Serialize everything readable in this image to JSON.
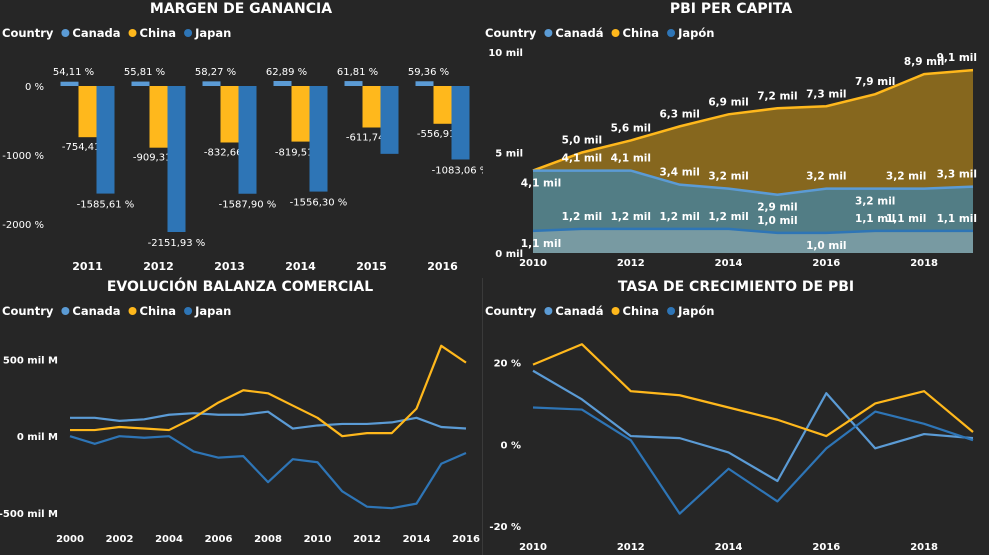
{
  "colors": {
    "background": "#262626",
    "canada": "#5B9BD5",
    "china": "#FFB81C",
    "japan": "#2E75B6",
    "text": "#FFFFFF",
    "grid": "#4A4A4A"
  },
  "chart_data": [
    {
      "id": "margen",
      "type": "bar",
      "title": "MARGEN DE GANANCIA",
      "legend_title": "Country",
      "categories": [
        "2011",
        "2012",
        "2013",
        "2014",
        "2015",
        "2016"
      ],
      "series": [
        {
          "name": "Canada",
          "values": [
            54.11,
            55.81,
            58.27,
            62.89,
            61.81,
            59.36
          ],
          "labels": [
            "54,11 %",
            "55,81 %",
            "58,27 %",
            "62,89 %",
            "61,81 %",
            "59,36 %"
          ]
        },
        {
          "name": "China",
          "values": [
            -754.41,
            -909.31,
            -832.66,
            -819.51,
            -611.74,
            -556.91
          ],
          "labels": [
            "-754,41 %",
            "-909,31 %",
            "-832,66 %",
            "-819,51 %",
            "-611,74 %",
            "-556,91 %"
          ]
        },
        {
          "name": "Japan",
          "values": [
            -1585.61,
            -2151.93,
            -1587.9,
            -1556.3,
            -1000.0,
            -1083.06
          ],
          "labels": [
            "-1585,61 %",
            "-2151,93 %",
            "-1587,90 %",
            "-1556,30 %",
            "",
            "-1083,06 %"
          ]
        }
      ],
      "y_ticks": [
        {
          "v": 0,
          "label": "0 %"
        },
        {
          "v": -1000,
          "label": "-1000 %"
        },
        {
          "v": -2000,
          "label": "-2000 %"
        }
      ],
      "ylim": [
        -2250,
        130
      ],
      "legend_position": "top-left",
      "grid": false
    },
    {
      "id": "pbi",
      "type": "area",
      "title": "PBI PER CAPITA",
      "legend_title": "Country",
      "x": [
        2010,
        2011,
        2012,
        2013,
        2014,
        2015,
        2016,
        2017,
        2018,
        2019
      ],
      "x_ticks": [
        {
          "v": 2010,
          "label": "2010"
        },
        {
          "v": 2012,
          "label": "2012"
        },
        {
          "v": 2014,
          "label": "2014"
        },
        {
          "v": 2016,
          "label": "2016"
        },
        {
          "v": 2018,
          "label": "2018"
        }
      ],
      "y_ticks": [
        {
          "v": 0,
          "label": "0 mil"
        },
        {
          "v": 5,
          "label": "5 mil"
        },
        {
          "v": 10,
          "label": "10 mil"
        }
      ],
      "ylim": [
        0,
        10.2
      ],
      "series": [
        {
          "name": "China",
          "values": [
            4.1,
            5.0,
            5.6,
            6.3,
            6.9,
            7.2,
            7.3,
            7.9,
            8.9,
            9.1
          ],
          "labels": [
            "",
            "5,0 mil",
            "5,6 mil",
            "6,3 mil",
            "6,9 mil",
            "7,2 mil",
            "7,3 mil",
            "7,9 mil",
            "8,9 mil",
            "9,1 mil"
          ]
        },
        {
          "name": "Canadá",
          "values": [
            4.1,
            4.1,
            4.1,
            3.4,
            3.2,
            2.9,
            3.2,
            3.2,
            3.2,
            3.3
          ],
          "labels": [
            "4,1 mil",
            "4,1 mil",
            "4,1 mil",
            "3,4 mil",
            "3,2 mil",
            "2,9 mil",
            "3,2 mil",
            "3,2 mil",
            "3,2 mil",
            "3,3 mil"
          ]
        },
        {
          "name": "Japón",
          "values": [
            1.1,
            1.2,
            1.2,
            1.2,
            1.2,
            1.0,
            1.0,
            1.1,
            1.1,
            1.1
          ],
          "labels": [
            "1,1 mil",
            "1,2 mil",
            "1,2 mil",
            "1,2 mil",
            "1,2 mil",
            "1,0 mil",
            "1,0 mil",
            "1,1 mil",
            "1,1 mil",
            "1,1 mil"
          ]
        }
      ],
      "legend_order": [
        "Canadá",
        "China",
        "Japón"
      ],
      "legend_position": "top-left",
      "grid": false
    },
    {
      "id": "balanza",
      "type": "line",
      "title": "EVOLUCIÓN BALANZA COMERCIAL",
      "legend_title": "Country",
      "x": [
        2000,
        2001,
        2002,
        2003,
        2004,
        2005,
        2006,
        2007,
        2008,
        2009,
        2010,
        2011,
        2012,
        2013,
        2014,
        2015,
        2016
      ],
      "x_ticks": [
        {
          "v": 2000,
          "label": "2000"
        },
        {
          "v": 2002,
          "label": "2002"
        },
        {
          "v": 2004,
          "label": "2004"
        },
        {
          "v": 2006,
          "label": "2006"
        },
        {
          "v": 2008,
          "label": "2008"
        },
        {
          "v": 2010,
          "label": "2010"
        },
        {
          "v": 2012,
          "label": "2012"
        },
        {
          "v": 2014,
          "label": "2014"
        },
        {
          "v": 2016,
          "label": "2016"
        }
      ],
      "y_ticks": [
        {
          "v": 500,
          "label": "500 mil M"
        },
        {
          "v": 0,
          "label": "0 mil M"
        },
        {
          "v": -500,
          "label": "-500 mil M"
        }
      ],
      "ylim": [
        -560,
        680
      ],
      "series": [
        {
          "name": "Canada",
          "values": [
            120,
            120,
            100,
            110,
            140,
            150,
            140,
            140,
            160,
            50,
            70,
            80,
            80,
            90,
            120,
            60,
            50
          ]
        },
        {
          "name": "China",
          "values": [
            40,
            40,
            60,
            50,
            40,
            120,
            220,
            300,
            280,
            200,
            120,
            0,
            20,
            20,
            180,
            590,
            480
          ]
        },
        {
          "name": "Japan",
          "values": [
            0,
            -50,
            0,
            -10,
            0,
            -100,
            -140,
            -130,
            -300,
            -150,
            -170,
            -360,
            -460,
            -470,
            -440,
            -180,
            -110
          ]
        }
      ],
      "legend_position": "top-left",
      "grid": false
    },
    {
      "id": "tasa",
      "type": "line",
      "title": "TASA DE CRECIMIENTO DE PBI",
      "legend_title": "Country",
      "x": [
        2010,
        2011,
        2012,
        2013,
        2014,
        2015,
        2016,
        2017,
        2018,
        2019
      ],
      "x_ticks": [
        {
          "v": 2010,
          "label": "2010"
        },
        {
          "v": 2012,
          "label": "2012"
        },
        {
          "v": 2014,
          "label": "2014"
        },
        {
          "v": 2016,
          "label": "2016"
        },
        {
          "v": 2018,
          "label": "2018"
        }
      ],
      "y_ticks": [
        {
          "v": 20,
          "label": "20 %"
        },
        {
          "v": 0,
          "label": "0 %"
        },
        {
          "v": -20,
          "label": "-20 %"
        }
      ],
      "ylim": [
        -21,
        27
      ],
      "series": [
        {
          "name": "Canadá",
          "values": [
            18,
            11,
            2,
            1.5,
            -2,
            -9,
            12.5,
            -1,
            2.5,
            1.5
          ]
        },
        {
          "name": "China",
          "values": [
            19.5,
            24.5,
            13,
            12,
            9,
            6,
            2,
            10,
            13,
            3
          ]
        },
        {
          "name": "Japón",
          "values": [
            9,
            8.5,
            1,
            -17,
            -6,
            -14,
            -1,
            8,
            5,
            1
          ]
        }
      ],
      "legend_position": "top-left",
      "grid": false
    }
  ]
}
